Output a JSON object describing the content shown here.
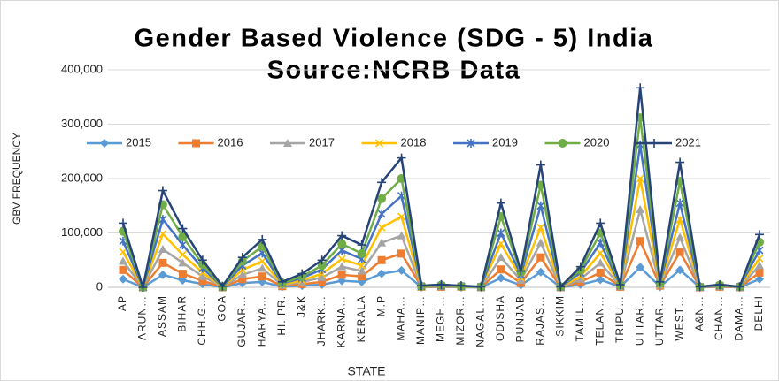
{
  "chart_data": {
    "type": "line",
    "title": "Gender Based Violence (SDG - 5) India",
    "subtitle": "Source:NCRB Data",
    "y_label": "GBV FREQUENCY",
    "x_label": "STATE",
    "categories": [
      "AP",
      "ARUN…",
      "ASSAM",
      "BIHAR",
      "CHH.G…",
      "GOA",
      "GUJAR…",
      "HARYA…",
      "HI. PR.",
      "J&K",
      "JHARK…",
      "KARNA…",
      "KERALA",
      "M.P",
      "MAHA…",
      "MANIP…",
      "MEGH…",
      "MIZOR…",
      "NAGAL…",
      "ODISHA",
      "PUNJAB",
      "RAJAS…",
      "SIKKIM",
      "TAMIL…",
      "TELAN…",
      "TRIPU…",
      "UTTAR…",
      "UTTAR…",
      "WEST…",
      "A&N…",
      "CHAN…",
      "DAMA…",
      "DELHI"
    ],
    "series": [
      {
        "name": "2015",
        "color": "#5b9bd5",
        "marker": "diamond",
        "values": [
          15000,
          0,
          23000,
          13000,
          6000,
          0,
          8000,
          10000,
          1000,
          3000,
          5000,
          12000,
          10000,
          25000,
          31000,
          0,
          1000,
          0,
          0,
          17000,
          4000,
          28000,
          0,
          5000,
          14000,
          1000,
          37000,
          1000,
          32000,
          0,
          1000,
          0,
          15000
        ]
      },
      {
        "name": "2016",
        "color": "#ed7d31",
        "marker": "square",
        "values": [
          32000,
          0,
          45000,
          25000,
          12000,
          0,
          15000,
          20000,
          2000,
          6000,
          10000,
          23000,
          20000,
          50000,
          62000,
          1000,
          1000,
          1000,
          0,
          33000,
          8000,
          55000,
          0,
          10000,
          27000,
          1000,
          85000,
          3000,
          65000,
          0,
          1000,
          0,
          27000
        ]
      },
      {
        "name": "2017",
        "color": "#a5a5a5",
        "marker": "triangle",
        "values": [
          48000,
          0,
          70000,
          45000,
          20000,
          1000,
          23000,
          35000,
          4000,
          10000,
          18000,
          38000,
          30000,
          82000,
          95000,
          1000,
          2000,
          1000,
          0,
          55000,
          13000,
          82000,
          0,
          15000,
          45000,
          2000,
          143000,
          4000,
          92000,
          0,
          2000,
          0,
          40000
        ]
      },
      {
        "name": "2018",
        "color": "#ffc000",
        "marker": "x",
        "values": [
          65000,
          0,
          98000,
          60000,
          27000,
          1000,
          32000,
          48000,
          5000,
          13000,
          25000,
          52000,
          40000,
          110000,
          130000,
          1000,
          3000,
          1000,
          1000,
          80000,
          18000,
          110000,
          1000,
          20000,
          63000,
          3000,
          200000,
          5000,
          125000,
          1000,
          3000,
          1000,
          53000
        ]
      },
      {
        "name": "2019",
        "color": "#4472c4",
        "marker": "star",
        "values": [
          85000,
          0,
          125000,
          78000,
          35000,
          1000,
          40000,
          63000,
          7000,
          17000,
          33000,
          68000,
          52000,
          135000,
          168000,
          2000,
          3000,
          2000,
          1000,
          100000,
          23000,
          150000,
          1000,
          27000,
          82000,
          3000,
          262000,
          7000,
          155000,
          1000,
          3000,
          1000,
          68000
        ]
      },
      {
        "name": "2020",
        "color": "#70ad47",
        "marker": "circle",
        "values": [
          103000,
          0,
          152000,
          93000,
          42000,
          1000,
          48000,
          75000,
          8000,
          20000,
          40000,
          80000,
          62000,
          163000,
          200000,
          2000,
          4000,
          2000,
          1000,
          130000,
          28000,
          188000,
          1000,
          32000,
          100000,
          4000,
          312000,
          8000,
          195000,
          1000,
          4000,
          1000,
          83000
        ]
      },
      {
        "name": "2021",
        "color": "#264478",
        "marker": "plus",
        "values": [
          118000,
          0,
          178000,
          108000,
          50000,
          2000,
          55000,
          88000,
          10000,
          25000,
          50000,
          95000,
          78000,
          193000,
          238000,
          3000,
          5000,
          3000,
          1000,
          155000,
          30000,
          225000,
          1000,
          38000,
          118000,
          5000,
          367000,
          10000,
          230000,
          1000,
          5000,
          1000,
          97000
        ]
      }
    ],
    "ylim": [
      0,
      400000
    ],
    "yticks": [
      0,
      {
        "value": 100000,
        "label": "100,000"
      },
      {
        "value": 200000,
        "label": "200,000"
      },
      {
        "value": 300000,
        "label": "300,000"
      },
      {
        "value": 400000,
        "label": "400,000"
      }
    ],
    "grid": true,
    "legend": "top"
  }
}
